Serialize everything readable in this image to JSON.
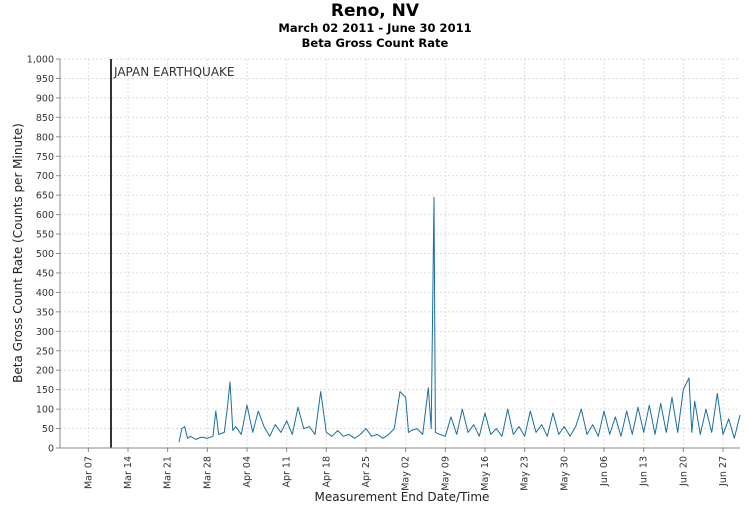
{
  "chart_data": {
    "type": "line",
    "title": "Reno, NV",
    "subtitle": "March 02 2011 - June 30 2011",
    "subtitle2": "Beta Gross Count Rate",
    "xlabel": "Measurement End Date/Time",
    "ylabel": "Beta Gross Count Rate (Counts per Minute)",
    "ylim": [
      0,
      1000
    ],
    "yticks": [
      0,
      50,
      100,
      150,
      200,
      250,
      300,
      350,
      400,
      450,
      500,
      550,
      600,
      650,
      700,
      750,
      800,
      850,
      900,
      950,
      1000
    ],
    "ytick_labels": [
      "0",
      "50",
      "100",
      "150",
      "200",
      "250",
      "300",
      "350",
      "400",
      "450",
      "500",
      "550",
      "600",
      "650",
      "700",
      "750",
      "800",
      "850",
      "900",
      "950",
      "1,000"
    ],
    "xlim": [
      "2011-03-02",
      "2011-06-30"
    ],
    "xticks": [
      "2011-03-07",
      "2011-03-14",
      "2011-03-21",
      "2011-03-28",
      "2011-04-04",
      "2011-04-11",
      "2011-04-18",
      "2011-04-25",
      "2011-05-02",
      "2011-05-09",
      "2011-05-16",
      "2011-05-23",
      "2011-05-30",
      "2011-06-06",
      "2011-06-13",
      "2011-06-20",
      "2011-06-27"
    ],
    "xtick_labels": [
      "Mar 07",
      "Mar 14",
      "Mar 21",
      "Mar 28",
      "Apr 04",
      "Apr 11",
      "Apr 18",
      "Apr 25",
      "May 02",
      "May 09",
      "May 16",
      "May 23",
      "May 30",
      "Jun 06",
      "Jun 13",
      "Jun 20",
      "Jun 27"
    ],
    "grid": true,
    "line_color": "#1a6fa0",
    "annotation": {
      "label": "JAPAN EARTHQUAKE",
      "date": "2011-03-11"
    },
    "series": [
      {
        "values": [
          [
            "2011-03-23",
            15
          ],
          [
            "2011-03-23T12:00",
            50
          ],
          [
            "2011-03-24",
            55
          ],
          [
            "2011-03-24T12:00",
            25
          ],
          [
            "2011-03-25",
            30
          ],
          [
            "2011-03-26",
            22
          ],
          [
            "2011-03-27",
            28
          ],
          [
            "2011-03-28",
            25
          ],
          [
            "2011-03-29",
            30
          ],
          [
            "2011-03-29T12:00",
            95
          ],
          [
            "2011-03-30",
            35
          ],
          [
            "2011-03-31",
            40
          ],
          [
            "2011-03-31T12:00",
            100
          ],
          [
            "2011-04-01",
            170
          ],
          [
            "2011-04-01T12:00",
            45
          ],
          [
            "2011-04-02",
            55
          ],
          [
            "2011-04-03",
            35
          ],
          [
            "2011-04-04",
            110
          ],
          [
            "2011-04-05",
            40
          ],
          [
            "2011-04-06",
            95
          ],
          [
            "2011-04-07",
            55
          ],
          [
            "2011-04-08",
            30
          ],
          [
            "2011-04-09",
            60
          ],
          [
            "2011-04-10",
            40
          ],
          [
            "2011-04-11",
            70
          ],
          [
            "2011-04-12",
            35
          ],
          [
            "2011-04-13",
            105
          ],
          [
            "2011-04-14",
            50
          ],
          [
            "2011-04-15",
            55
          ],
          [
            "2011-04-16",
            35
          ],
          [
            "2011-04-17",
            145
          ],
          [
            "2011-04-18",
            40
          ],
          [
            "2011-04-19",
            30
          ],
          [
            "2011-04-20",
            45
          ],
          [
            "2011-04-21",
            30
          ],
          [
            "2011-04-22",
            35
          ],
          [
            "2011-04-23",
            25
          ],
          [
            "2011-04-24",
            35
          ],
          [
            "2011-04-25",
            50
          ],
          [
            "2011-04-26",
            30
          ],
          [
            "2011-04-27",
            35
          ],
          [
            "2011-04-28",
            25
          ],
          [
            "2011-04-29",
            35
          ],
          [
            "2011-04-30",
            50
          ],
          [
            "2011-05-01",
            145
          ],
          [
            "2011-05-02",
            130
          ],
          [
            "2011-05-02T12:00",
            40
          ],
          [
            "2011-05-03",
            45
          ],
          [
            "2011-05-04",
            50
          ],
          [
            "2011-05-05",
            35
          ],
          [
            "2011-05-06",
            155
          ],
          [
            "2011-05-06T12:00",
            50
          ],
          [
            "2011-05-07",
            645
          ],
          [
            "2011-05-07T06:00",
            40
          ],
          [
            "2011-05-08",
            35
          ],
          [
            "2011-05-09",
            30
          ],
          [
            "2011-05-10",
            80
          ],
          [
            "2011-05-11",
            35
          ],
          [
            "2011-05-12",
            100
          ],
          [
            "2011-05-13",
            40
          ],
          [
            "2011-05-14",
            60
          ],
          [
            "2011-05-15",
            30
          ],
          [
            "2011-05-16",
            90
          ],
          [
            "2011-05-17",
            35
          ],
          [
            "2011-05-18",
            50
          ],
          [
            "2011-05-19",
            30
          ],
          [
            "2011-05-20",
            100
          ],
          [
            "2011-05-21",
            35
          ],
          [
            "2011-05-22",
            55
          ],
          [
            "2011-05-23",
            30
          ],
          [
            "2011-05-24",
            95
          ],
          [
            "2011-05-25",
            40
          ],
          [
            "2011-05-26",
            60
          ],
          [
            "2011-05-27",
            30
          ],
          [
            "2011-05-28",
            90
          ],
          [
            "2011-05-29",
            35
          ],
          [
            "2011-05-30",
            55
          ],
          [
            "2011-05-31",
            30
          ],
          [
            "2011-06-01",
            55
          ],
          [
            "2011-06-02",
            100
          ],
          [
            "2011-06-03",
            35
          ],
          [
            "2011-06-04",
            60
          ],
          [
            "2011-06-05",
            30
          ],
          [
            "2011-06-06",
            95
          ],
          [
            "2011-06-07",
            35
          ],
          [
            "2011-06-08",
            80
          ],
          [
            "2011-06-09",
            30
          ],
          [
            "2011-06-10",
            95
          ],
          [
            "2011-06-11",
            35
          ],
          [
            "2011-06-12",
            105
          ],
          [
            "2011-06-13",
            40
          ],
          [
            "2011-06-14",
            110
          ],
          [
            "2011-06-15",
            35
          ],
          [
            "2011-06-16",
            115
          ],
          [
            "2011-06-17",
            40
          ],
          [
            "2011-06-18",
            130
          ],
          [
            "2011-06-19",
            40
          ],
          [
            "2011-06-20",
            150
          ],
          [
            "2011-06-21",
            180
          ],
          [
            "2011-06-21T12:00",
            40
          ],
          [
            "2011-06-22",
            120
          ],
          [
            "2011-06-23",
            35
          ],
          [
            "2011-06-24",
            100
          ],
          [
            "2011-06-25",
            40
          ],
          [
            "2011-06-26",
            140
          ],
          [
            "2011-06-27",
            35
          ],
          [
            "2011-06-28",
            75
          ],
          [
            "2011-06-29",
            25
          ],
          [
            "2011-06-30",
            85
          ]
        ]
      }
    ]
  }
}
